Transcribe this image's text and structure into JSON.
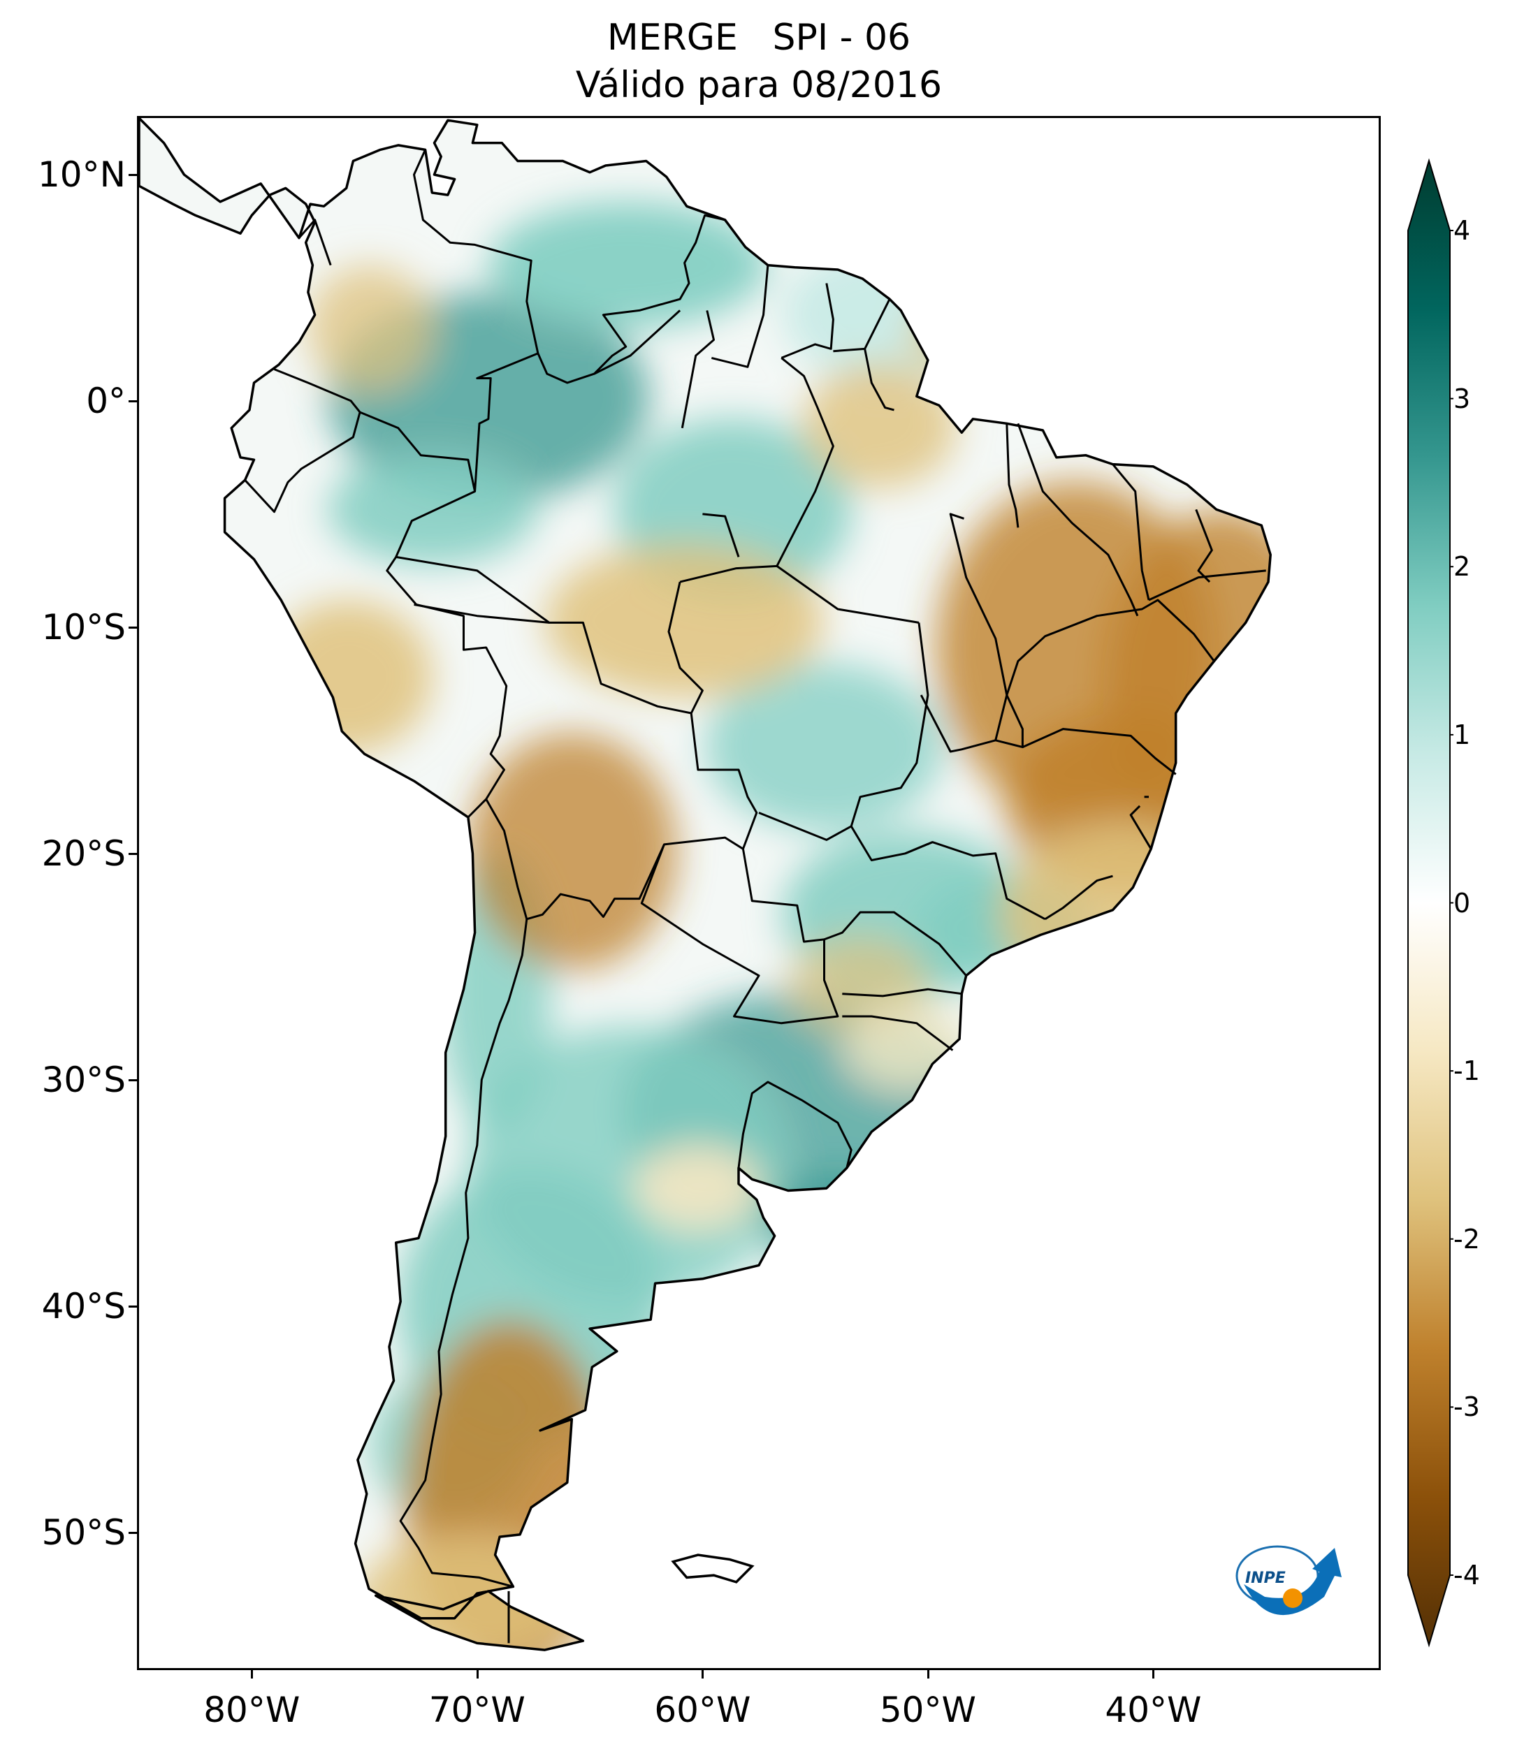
{
  "title": {
    "line1": "MERGE   SPI - 06",
    "line2": "Válido para 08/2016"
  },
  "map": {
    "lat_ticks": [
      "10°N",
      "0°",
      "10°S",
      "20°S",
      "30°S",
      "40°S",
      "50°S"
    ],
    "lon_ticks": [
      "80°W",
      "70°W",
      "60°W",
      "50°W",
      "40°W"
    ],
    "extent": {
      "lon": [
        -85,
        -30
      ],
      "lat": [
        -56,
        12.5
      ]
    }
  },
  "colorbar": {
    "min": -4,
    "max": 4,
    "ticks": [
      "4",
      "3",
      "2",
      "1",
      "0",
      "-1",
      "-2",
      "-3",
      "-4"
    ],
    "colors": [
      "#543005",
      "#8c510a",
      "#bf812d",
      "#dfc27d",
      "#f6e8c3",
      "#ffffff",
      "#c7eae5",
      "#80cdc1",
      "#35978f",
      "#01665e",
      "#003c30"
    ]
  },
  "logo": {
    "text": "INPE",
    "icon": "inpe-logo-icon"
  }
}
